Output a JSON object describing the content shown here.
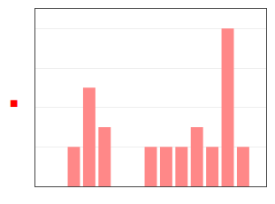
{
  "chart_data": {
    "type": "bar",
    "categories": [
      null,
      null,
      null,
      null,
      null,
      null,
      null,
      null,
      null,
      null,
      null,
      null,
      null,
      null,
      null
    ],
    "values": [
      0,
      0,
      2,
      5,
      3,
      0,
      0,
      2,
      2,
      2,
      3,
      2,
      8,
      2,
      0
    ],
    "color": "#ff8888",
    "ylim": [
      0,
      9
    ],
    "yticks": [
      0,
      2,
      4,
      6,
      8
    ],
    "grid": true,
    "tick_labels": false,
    "annotations": [
      {
        "text": "■",
        "color": "#ff0000"
      }
    ]
  }
}
